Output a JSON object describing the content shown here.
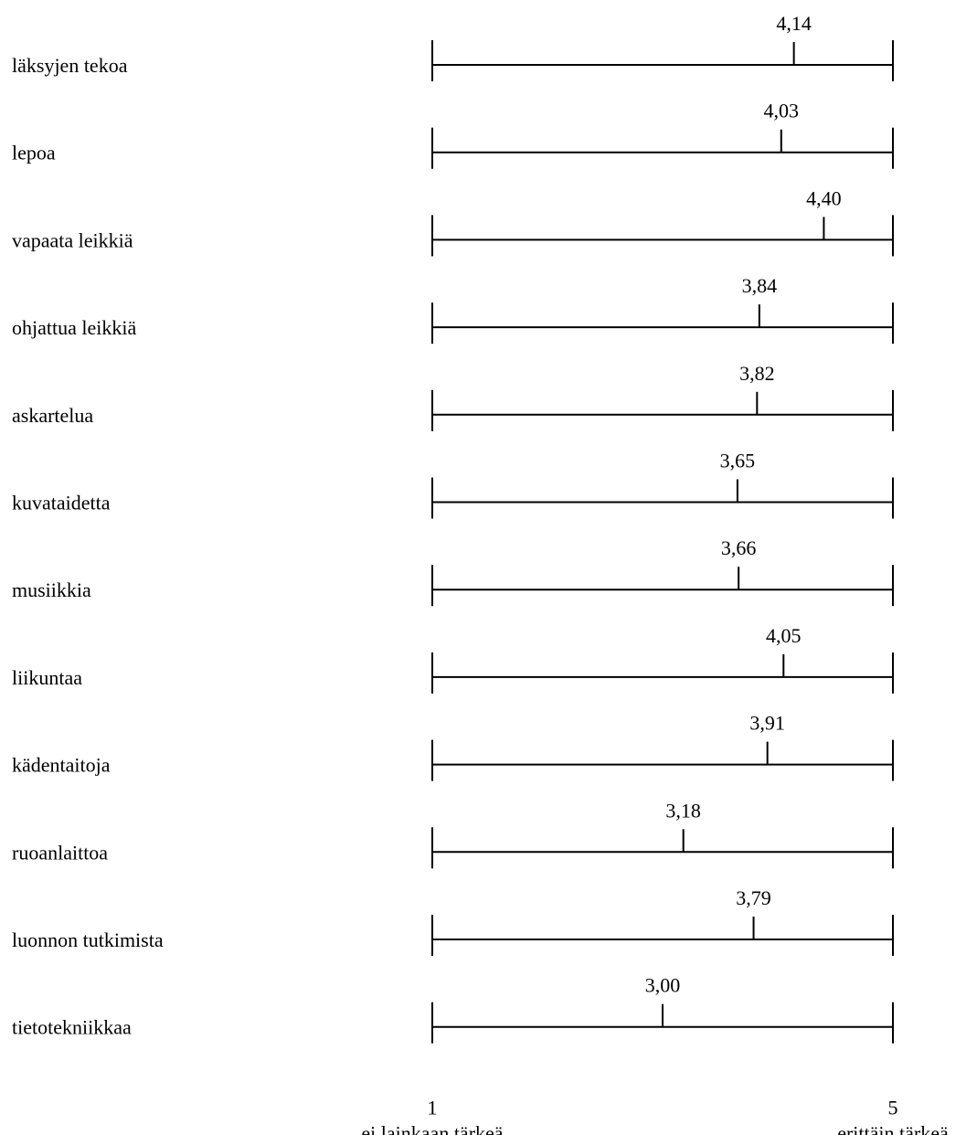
{
  "chart_data": {
    "type": "dot-scale",
    "categories": [
      "läksyjen tekoa",
      "lepoa",
      "vapaata leikkiä",
      "ohjattua leikkiä",
      "askartelua",
      "kuvataidetta",
      "musiikkia",
      "liikuntaa",
      "kädentaitoja",
      "ruoanlaittoa",
      "luonnon tutkimista",
      "tietotekniikkaa"
    ],
    "values": [
      4.14,
      4.03,
      4.4,
      3.84,
      3.82,
      3.65,
      3.66,
      4.05,
      3.91,
      3.18,
      3.79,
      3.0
    ],
    "value_labels": [
      "4,14",
      "4,03",
      "4,40",
      "3,84",
      "3,82",
      "3,65",
      "3,66",
      "4,05",
      "3,91",
      "3,18",
      "3,79",
      "3,00"
    ],
    "xlim": [
      1,
      5
    ],
    "x_ticks": [
      {
        "value": 1,
        "label": "1",
        "caption": "ei lainkaan tärkeä"
      },
      {
        "value": 5,
        "label": "5",
        "caption": "erittäin tärkeä"
      }
    ],
    "title": "",
    "xlabel": "",
    "ylabel": "",
    "grid": false,
    "legend": "none",
    "colors": {
      "line": "#000000",
      "text": "#000000",
      "background": "#ffffff"
    }
  }
}
